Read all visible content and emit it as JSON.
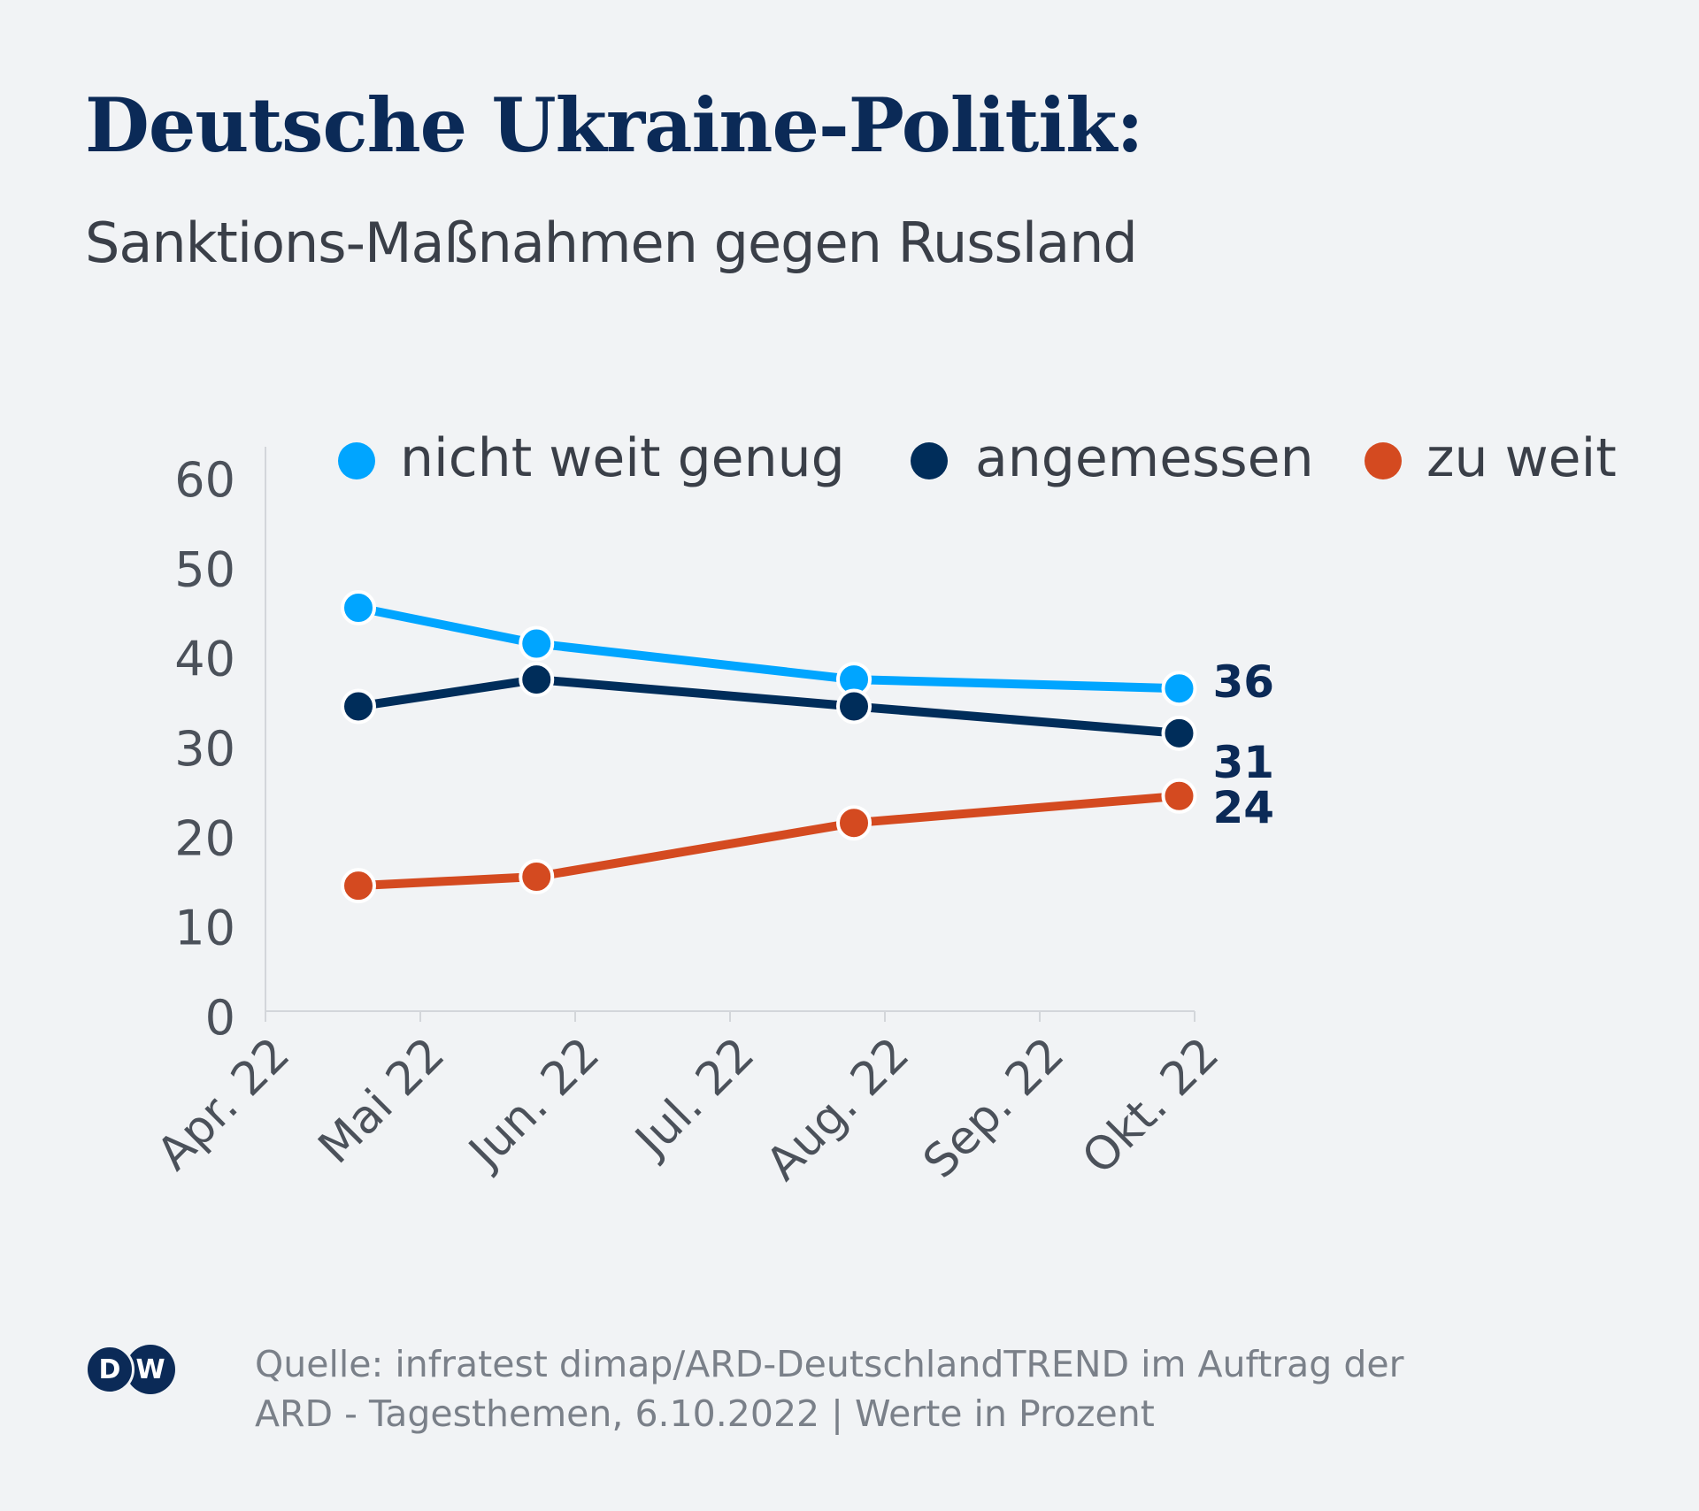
{
  "header": {
    "title": "Deutsche Ukraine-Politik:",
    "subtitle": "Sanktions-Maßnahmen gegen Russland"
  },
  "chart_data": {
    "type": "line",
    "x_ticks": [
      "Apr. 22",
      "Mai 22",
      "Jun. 22",
      "Jul. 22",
      "Aug. 22",
      "Sep. 22",
      "Okt. 22"
    ],
    "y_ticks": [
      0,
      10,
      20,
      30,
      40,
      50,
      60
    ],
    "ylim": [
      0,
      60
    ],
    "xlim": [
      0,
      6
    ],
    "legend_position": "top",
    "series": [
      {
        "name": "nicht weit genug",
        "color": "#00a5ff",
        "x": [
          0.6,
          1.75,
          3.8,
          5.9
        ],
        "values": [
          45,
          41,
          37,
          36
        ],
        "end_label": "36"
      },
      {
        "name": "angemessen",
        "color": "#002d5a",
        "x": [
          0.6,
          1.75,
          3.8,
          5.9
        ],
        "values": [
          34,
          37,
          34,
          31
        ],
        "end_label": "31"
      },
      {
        "name": "zu weit",
        "color": "#d44a20",
        "x": [
          0.6,
          1.75,
          3.8,
          5.9
        ],
        "values": [
          14,
          15,
          21,
          24
        ],
        "end_label": "24"
      }
    ]
  },
  "footer": {
    "logo_letters": [
      "D",
      "W"
    ],
    "source_line1": "Quelle: infratest dimap/ARD-DeutschlandTREND im Auftrag der",
    "source_line2": "ARD - Tagesthemen, 6.10.2022 | Werte in Prozent"
  }
}
